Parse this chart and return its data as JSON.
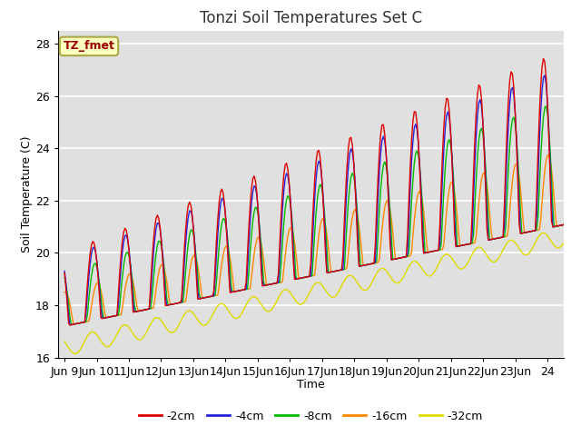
{
  "title": "Tonzi Soil Temperatures Set C",
  "xlabel": "Time",
  "ylabel": "Soil Temperature (C)",
  "annotation": "TZ_fmet",
  "ylim": [
    16,
    28.5
  ],
  "series_colors": [
    "#dd0000",
    "#2222dd",
    "#00bb00",
    "#ff8800",
    "#dddd00"
  ],
  "series_labels": [
    "-2cm",
    "-4cm",
    "-8cm",
    "-16cm",
    "-32cm"
  ],
  "bg_color": "#e0e0e0",
  "x_tick_labels": [
    "Jun 9",
    "Jun 10",
    "11Jun",
    "12Jun",
    "13Jun",
    "14Jun",
    "15Jun",
    "16Jun",
    "17Jun",
    "18Jun",
    "19Jun",
    "20Jun",
    "21Jun",
    "22Jun",
    "23Jun",
    "24"
  ]
}
